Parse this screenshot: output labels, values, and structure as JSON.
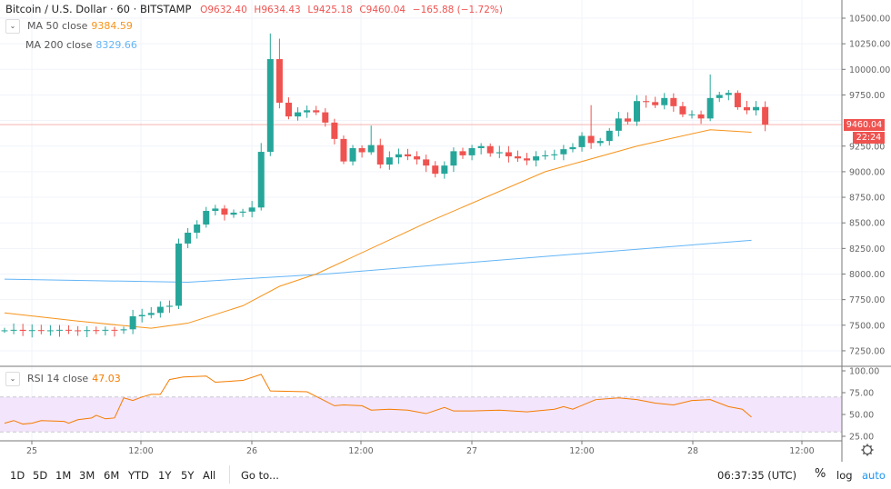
{
  "header": {
    "symbol": "Bitcoin / U.S. Dollar",
    "interval": "60",
    "exchange": "BITSTAMP",
    "open": "O9632.40",
    "high": "H9634.43",
    "low": "L9425.18",
    "close": "C9460.04",
    "change": "−165.88 (−1.72%)"
  },
  "indicators": {
    "ma50": {
      "label": "MA 50 close",
      "value": "9384.59",
      "color": "#f7931a"
    },
    "ma200": {
      "label": "MA 200 close",
      "value": "8329.66",
      "color": "#64b5f6"
    },
    "rsi": {
      "label": "RSI 14 close",
      "value": "47.03",
      "color": "#f57c00"
    }
  },
  "price_axis": {
    "ticks": [
      "10500.00",
      "10250.00",
      "10000.00",
      "9750.00",
      "9250.00",
      "9000.00",
      "8750.00",
      "8500.00",
      "8250.00",
      "8000.00",
      "7750.00",
      "7500.00",
      "7250.00"
    ],
    "last_price": "9460.04",
    "countdown": "22:24"
  },
  "rsi_axis": {
    "ticks": [
      "100.00",
      "75.00",
      "50.00",
      "25.00"
    ]
  },
  "time_axis": {
    "ticks": [
      "25",
      "12:00",
      "26",
      "12:00",
      "27",
      "12:00",
      "28",
      "12:00"
    ]
  },
  "toolbar": {
    "ranges": [
      "1D",
      "5D",
      "1M",
      "3M",
      "6M",
      "YTD",
      "1Y",
      "5Y",
      "All"
    ],
    "goto": "Go to...",
    "clock": "06:37:35 (UTC)",
    "percent": "%",
    "log": "log",
    "auto": "auto"
  },
  "colors": {
    "up": "#26a69a",
    "down": "#ef5350",
    "rsi_band": "#f3e5fc",
    "auto": "#2196f3"
  },
  "chart_data": {
    "type": "candlestick",
    "interval_hours": 1,
    "ylim": [
      7100,
      10650
    ],
    "rsi_ylim": [
      18,
      105
    ],
    "rsi_band": [
      30,
      70
    ],
    "first_open": 7450,
    "closes": [
      7450,
      7455,
      7445,
      7452,
      7448,
      7450,
      7455,
      7450,
      7445,
      7452,
      7448,
      7455,
      7450,
      7460,
      7587,
      7600,
      7620,
      7680,
      7690,
      8298,
      8404,
      8484,
      8617,
      8640,
      8580,
      8600,
      8610,
      8650,
      9194,
      10100,
      9674,
      9540,
      9580,
      9600,
      9580,
      9480,
      9320,
      9100,
      9230,
      9190,
      9260,
      9070,
      9140,
      9170,
      9150,
      9120,
      9060,
      8980,
      9060,
      9200,
      9160,
      9230,
      9250,
      9180,
      9190,
      9150,
      9130,
      9110,
      9150,
      9160,
      9170,
      9220,
      9240,
      9350,
      9280,
      9300,
      9400,
      9520,
      9490,
      9690,
      9680,
      9650,
      9720,
      9640,
      9560,
      9560,
      9520,
      9720,
      9750,
      9770,
      9630,
      9600,
      9632,
      9460
    ],
    "spikes": {
      "28": 9280,
      "29": 10350,
      "30": 10300,
      "40": 9450,
      "64": 9650,
      "77": 9950
    },
    "ma50": [
      [
        0,
        7620
      ],
      [
        8,
        7540
      ],
      [
        16,
        7470
      ],
      [
        20,
        7520
      ],
      [
        26,
        7690
      ],
      [
        30,
        7880
      ],
      [
        34,
        8000
      ],
      [
        46,
        8500
      ],
      [
        59,
        9000
      ],
      [
        69,
        9250
      ],
      [
        77,
        9410
      ],
      [
        81.5,
        9385
      ]
    ],
    "ma200": [
      [
        0,
        7950
      ],
      [
        20,
        7920
      ],
      [
        35,
        8000
      ],
      [
        63,
        8200
      ],
      [
        81.5,
        8330
      ]
    ],
    "rsi": [
      [
        0,
        40
      ],
      [
        1,
        43
      ],
      [
        2,
        39
      ],
      [
        3,
        40
      ],
      [
        4,
        43
      ],
      [
        6.5,
        42
      ],
      [
        7,
        40
      ],
      [
        8,
        44
      ],
      [
        9.5,
        46
      ],
      [
        10,
        49
      ],
      [
        11,
        45
      ],
      [
        12,
        46
      ],
      [
        13,
        69
      ],
      [
        14,
        66
      ],
      [
        15,
        70
      ],
      [
        16,
        73
      ],
      [
        17,
        73
      ],
      [
        18,
        90
      ],
      [
        19.5,
        93
      ],
      [
        22,
        94
      ],
      [
        23,
        87
      ],
      [
        26,
        89
      ],
      [
        28,
        96
      ],
      [
        29,
        77
      ],
      [
        33,
        76
      ],
      [
        36,
        60
      ],
      [
        37,
        61
      ],
      [
        39,
        60
      ],
      [
        40,
        55
      ],
      [
        42,
        56
      ],
      [
        44,
        55
      ],
      [
        46,
        51
      ],
      [
        48,
        58
      ],
      [
        49,
        54
      ],
      [
        51,
        54
      ],
      [
        54,
        55
      ],
      [
        57,
        53
      ],
      [
        60,
        56
      ],
      [
        61,
        59
      ],
      [
        62,
        56
      ],
      [
        64.5,
        67
      ],
      [
        67,
        69
      ],
      [
        69,
        67
      ],
      [
        71,
        63
      ],
      [
        73,
        61
      ],
      [
        75,
        66
      ],
      [
        77,
        67
      ],
      [
        79,
        59
      ],
      [
        80.5,
        56
      ],
      [
        81.5,
        47
      ]
    ]
  }
}
